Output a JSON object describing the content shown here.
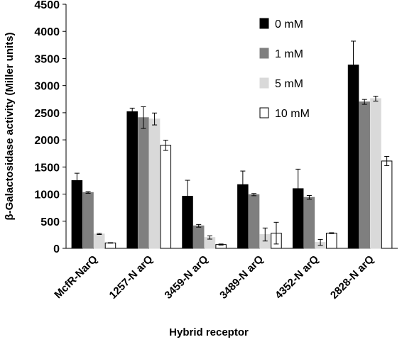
{
  "chart_data": {
    "type": "bar",
    "title": "",
    "xlabel": "Hybrid receptor",
    "ylabel": "β-Galactosidase activity (Miller units)",
    "ylim": [
      0,
      4500
    ],
    "yticks": [
      0,
      500,
      1000,
      1500,
      2000,
      2500,
      3000,
      3500,
      4000,
      4500
    ],
    "grid": false,
    "legend_position": "top-right",
    "categories": [
      "McfR-NarQ",
      "1257-N arQ",
      "3459-N arQ",
      "3489-N arQ",
      "4352-N arQ",
      "2828-N arQ"
    ],
    "series": [
      {
        "name": "0 mM",
        "color": "#000000",
        "border": "#000000",
        "values": [
          1250,
          2520,
          960,
          1175,
          1100,
          3380
        ],
        "errors": [
          135,
          65,
          295,
          250,
          360,
          440
        ]
      },
      {
        "name": "1 mM",
        "color": "#7f7f7f",
        "border": "#7f7f7f",
        "values": [
          1030,
          2410,
          415,
          990,
          940,
          2700
        ],
        "errors": [
          15,
          200,
          25,
          20,
          35,
          45
        ]
      },
      {
        "name": "5 mM",
        "color": "#d9d9d9",
        "border": "#d9d9d9",
        "values": [
          265,
          2385,
          200,
          255,
          110,
          2760
        ],
        "errors": [
          10,
          110,
          30,
          120,
          55,
          45
        ]
      },
      {
        "name": "10 mM",
        "color": "#ffffff",
        "border": "#000000",
        "values": [
          100,
          1900,
          70,
          280,
          280,
          1610
        ],
        "errors": [
          5,
          95,
          10,
          200,
          8,
          85
        ]
      }
    ]
  }
}
